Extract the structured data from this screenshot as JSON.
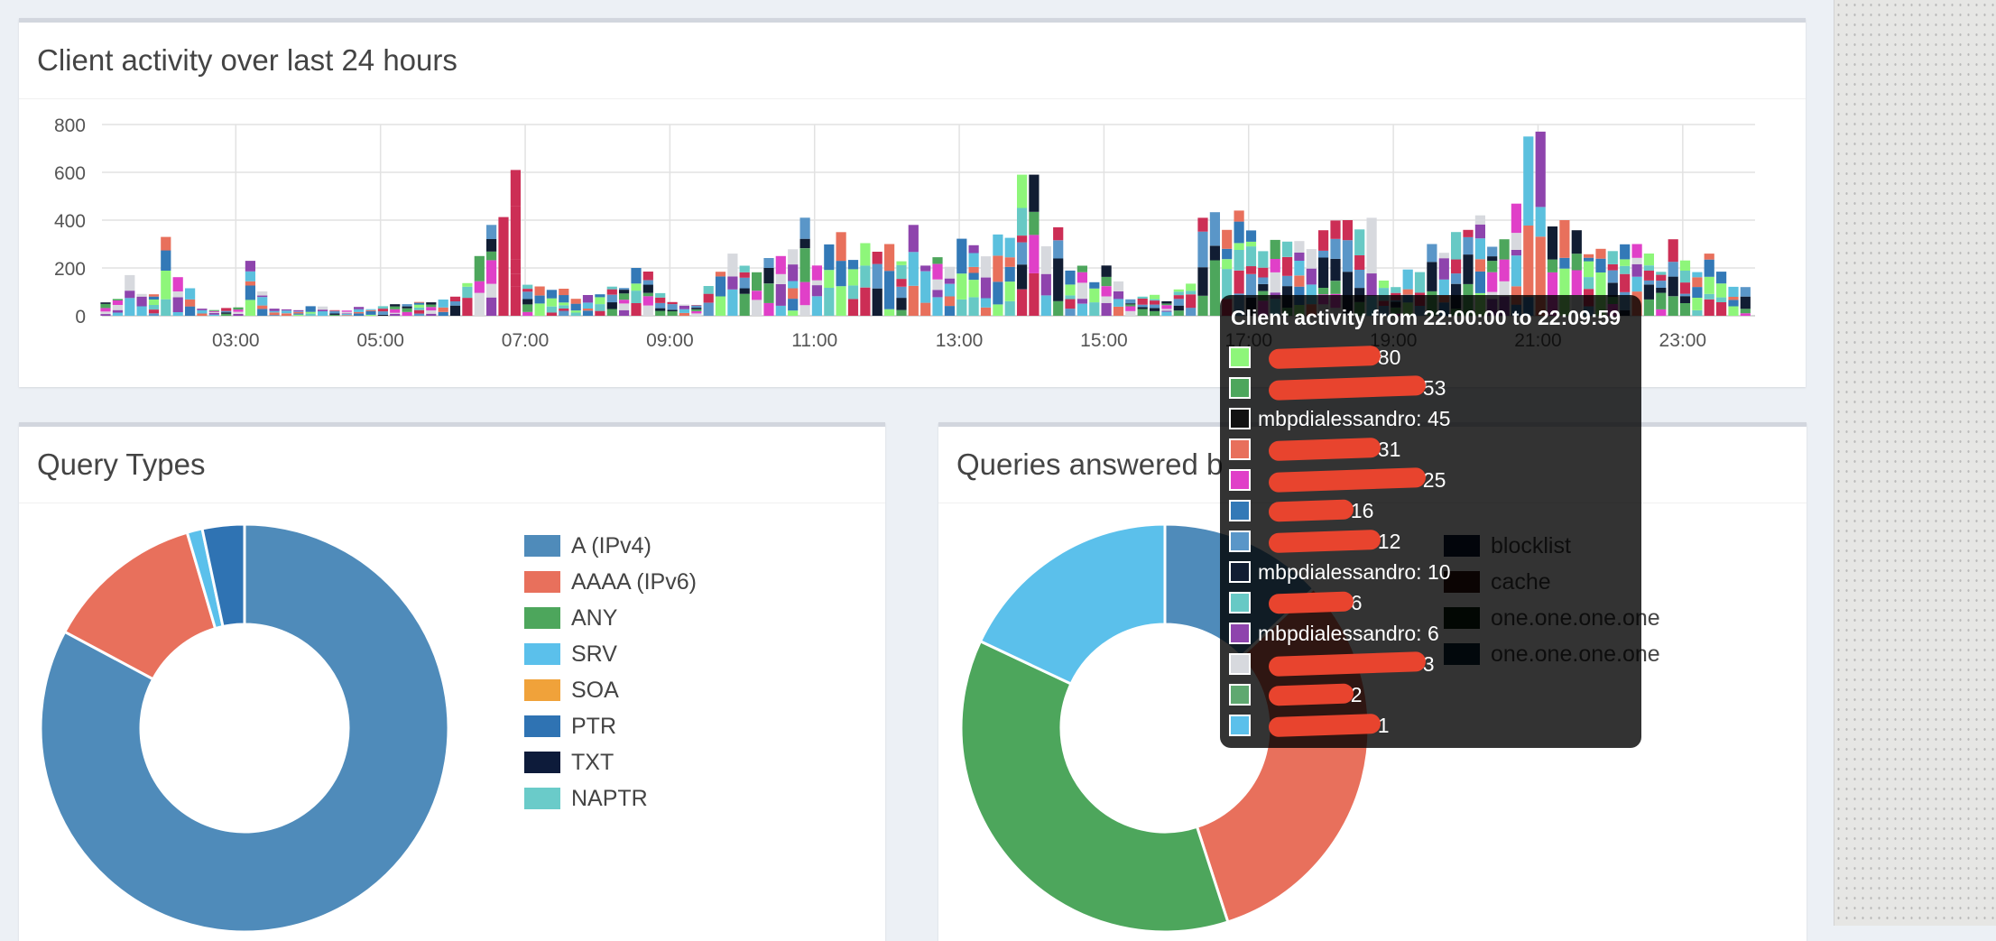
{
  "activity": {
    "title": "Client activity over last 24 hours",
    "chart_data": {
      "type": "bar",
      "stacked": true,
      "title": "Client activity over last 24 hours",
      "y_ticks": [
        0,
        200,
        400,
        600,
        800
      ],
      "ylim": [
        0,
        800
      ],
      "x_ticks": [
        "03:00",
        "05:00",
        "07:00",
        "09:00",
        "11:00",
        "13:00",
        "15:00",
        "17:00",
        "19:00",
        "21:00",
        "23:00"
      ],
      "xlim_hours": [
        1.15,
        24.0
      ],
      "interval_minutes": 10,
      "grid": true,
      "colors": [
        "#e8705c",
        "#4da65c",
        "#8ef67a",
        "#d7d9de",
        "#cc2e55",
        "#5bc0de",
        "#111d33",
        "#3379b7",
        "#e040c8",
        "#67c9c5",
        "#8e44ad",
        "#5a96c8"
      ],
      "samples": [
        {
          "t": 1.3,
          "total": 70
        },
        {
          "t": 1.6,
          "total": 170
        },
        {
          "t": 1.9,
          "total": 90
        },
        {
          "t": 2.1,
          "total": 330
        },
        {
          "t": 2.3,
          "total": 115
        },
        {
          "t": 2.6,
          "total": 30
        },
        {
          "t": 3.0,
          "total": 35
        },
        {
          "t": 3.25,
          "total": 230
        },
        {
          "t": 3.5,
          "total": 30
        },
        {
          "t": 4.0,
          "total": 40
        },
        {
          "t": 5.0,
          "total": 40
        },
        {
          "t": 6.0,
          "total": 80
        },
        {
          "t": 6.3,
          "total": 250
        },
        {
          "t": 6.55,
          "total": 380
        },
        {
          "t": 6.85,
          "total": 610
        },
        {
          "t": 7.1,
          "total": 130
        },
        {
          "t": 8.0,
          "total": 90
        },
        {
          "t": 8.6,
          "total": 200
        },
        {
          "t": 9.3,
          "total": 45
        },
        {
          "t": 9.8,
          "total": 260
        },
        {
          "t": 10.5,
          "total": 250
        },
        {
          "t": 10.8,
          "total": 410
        },
        {
          "t": 11.3,
          "total": 350
        },
        {
          "t": 12.0,
          "total": 300
        },
        {
          "t": 12.4,
          "total": 380
        },
        {
          "t": 13.5,
          "total": 340
        },
        {
          "t": 13.95,
          "total": 590
        },
        {
          "t": 14.3,
          "total": 370
        },
        {
          "t": 15.0,
          "total": 210
        },
        {
          "t": 15.5,
          "total": 80
        },
        {
          "t": 16.1,
          "total": 110
        },
        {
          "t": 16.4,
          "total": 410
        },
        {
          "t": 16.9,
          "total": 440
        },
        {
          "t": 17.5,
          "total": 310
        },
        {
          "t": 18.3,
          "total": 400
        },
        {
          "t": 18.65,
          "total": 410
        },
        {
          "t": 19.0,
          "total": 120
        },
        {
          "t": 19.5,
          "total": 300
        },
        {
          "t": 20.2,
          "total": 420
        },
        {
          "t": 20.6,
          "total": 320
        },
        {
          "t": 20.85,
          "total": 750
        },
        {
          "t": 21.0,
          "total": 770
        },
        {
          "t": 21.1,
          "total": 730
        },
        {
          "t": 21.3,
          "total": 400
        },
        {
          "t": 21.8,
          "total": 280
        },
        {
          "t": 22.3,
          "total": 300
        },
        {
          "t": 22.8,
          "total": 320
        },
        {
          "t": 23.3,
          "total": 260
        },
        {
          "t": 23.8,
          "total": 120
        }
      ]
    }
  },
  "query_types": {
    "title": "Query Types",
    "chart_data": {
      "type": "pie",
      "donut": true,
      "slices": [
        {
          "label": "A (IPv4)",
          "value": 82.0,
          "color": "#4f8bba"
        },
        {
          "label": "AAAA (IPv6)",
          "value": 12.5,
          "color": "#e8705c"
        },
        {
          "label": "ANY",
          "value": 0,
          "color": "#4da65c"
        },
        {
          "label": "SRV",
          "value": 1.2,
          "color": "#5bc0eb"
        },
        {
          "label": "SOA",
          "value": 0,
          "color": "#f0a23a"
        },
        {
          "label": "PTR",
          "value": 3.3,
          "color": "#2f73b3"
        },
        {
          "label": "TXT",
          "value": 0,
          "color": "#0d1b3a"
        },
        {
          "label": "NAPTR",
          "value": 0,
          "color": "#6acbc9"
        }
      ]
    }
  },
  "answered": {
    "title_visible": "Queries answered b",
    "chart_data": {
      "type": "pie",
      "donut": true,
      "slices": [
        {
          "label": "blocklist",
          "value": 13,
          "color": "#4f8bba"
        },
        {
          "label": "cache",
          "value": 32,
          "color": "#e8705c"
        },
        {
          "label": "one.one.one.one",
          "value": 37,
          "color": "#4da65c"
        },
        {
          "label": "one.one.one.one",
          "value": 18,
          "color": "#5bc0eb"
        }
      ]
    },
    "legend": [
      {
        "label": "blocklist",
        "color": "#0d1b3a"
      },
      {
        "label": "cache",
        "color": "#3a1410"
      },
      {
        "label": "one.one.one.one",
        "color": "#0b2412"
      },
      {
        "label": "one.one.one.one",
        "color": "#0b2b3c"
      }
    ]
  },
  "tooltip": {
    "title": "Client activity from 22:00:00 to 22:09:59",
    "rows": [
      {
        "label": ": 80",
        "color": "#8ef67a",
        "redacted": true
      },
      {
        "label": ": 53",
        "color": "#4da65c",
        "redacted": true
      },
      {
        "label": "mbpdialessandro: 45",
        "color": "#111111",
        "redacted": false
      },
      {
        "label": ": 31",
        "color": "#e8705c",
        "redacted": true
      },
      {
        "label": ": 25",
        "color": "#e040c8",
        "redacted": true
      },
      {
        "label": ": 16",
        "color": "#3379b7",
        "redacted": true
      },
      {
        "label": ": 12",
        "color": "#5a96c8",
        "redacted": true
      },
      {
        "label": "mbpdialessandro: 10",
        "color": "#111d33",
        "redacted": false
      },
      {
        "label": ": 6",
        "color": "#67c9c5",
        "redacted": true
      },
      {
        "label": "mbpdialessandro: 6",
        "color": "#8e44ad",
        "redacted": false
      },
      {
        "label": ": 3",
        "color": "#d7d9de",
        "redacted": true
      },
      {
        "label": ": 2",
        "color": "#5fa870",
        "redacted": true
      },
      {
        "label": ": 1",
        "color": "#5bc0eb",
        "redacted": true
      }
    ]
  }
}
